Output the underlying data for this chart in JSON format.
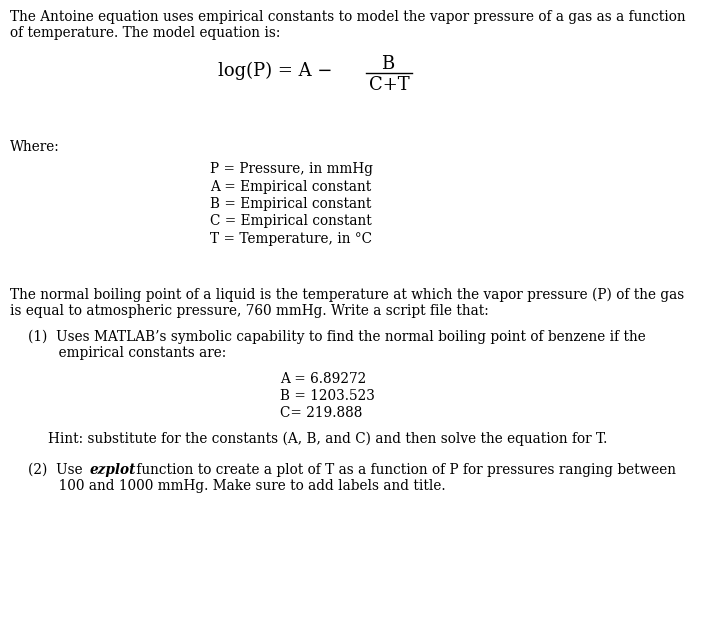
{
  "bg_color": "#ffffff",
  "text_color": "#000000",
  "font_family": "DejaVu Serif",
  "font_size": 9.8,
  "para1_line1": "The Antoine equation uses empirical constants to model the vapor pressure of a gas as a function",
  "para1_line2": "of temperature. The model equation is:",
  "eq_left": "log(P) = A −",
  "eq_num": "B",
  "eq_den": "C+T",
  "where_label": "Where:",
  "definitions": [
    "P = Pressure, in mmHg",
    "A = Empirical constant",
    "B = Empirical constant",
    "C = Empirical constant",
    "T = Temperature, in °C"
  ],
  "para2_line1": "The normal boiling point of a liquid is the temperature at which the vapor pressure (P) of the gas",
  "para2_line2": "is equal to atmospheric pressure, 760 mmHg. Write a script file that:",
  "item1_line1": "(1)  Uses MATLAB’s symbolic capability to find the normal boiling point of benzene if the",
  "item1_line2": "       empirical constants are:",
  "const1": "A = 6.89272",
  "const2": "B = 1203.523",
  "const3": "C= 219.888",
  "hint": "Hint: substitute for the constants (A, B, and C) and then solve the equation for T.",
  "item2_line1_pre": "(2)  Use ",
  "item2_italic": "ezplot",
  "item2_line1_post": " function to create a plot of T as a function of P for pressures ranging between",
  "item2_line2": "       100 and 1000 mmHg. Make sure to add labels and title."
}
